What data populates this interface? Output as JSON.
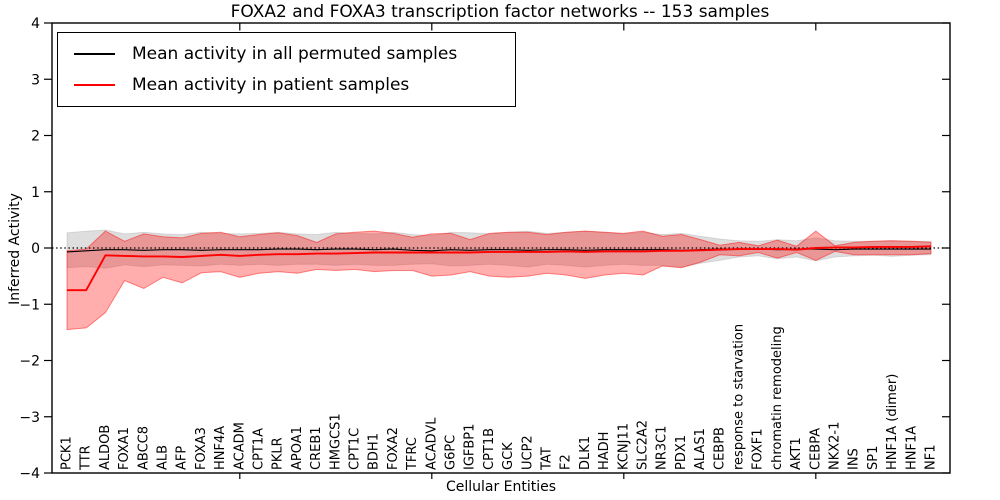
{
  "title": "FOXA2 and FOXA3 transcription factor networks -- 153 samples",
  "legend": {
    "entries": [
      {
        "label": "Mean activity in all permuted samples",
        "color": "#000000"
      },
      {
        "label": "Mean activity in patient samples",
        "color": "#ff0000"
      }
    ]
  },
  "chart_data": {
    "type": "line",
    "title": "FOXA2 and FOXA3 transcription factor networks -- 153 samples",
    "xlabel": "Cellular Entities",
    "ylabel": "Inferred Activity",
    "ylim": [
      -4,
      4
    ],
    "grid": false,
    "legend_position": "upper left",
    "zero_line": {
      "style": "dotted",
      "color": "#000000",
      "y": 0
    },
    "yticks": [
      4,
      3,
      2,
      1,
      0,
      -1,
      -2,
      -3,
      -4
    ],
    "ytick_labels": [
      "4",
      "3",
      "2",
      "1",
      "0",
      "−1",
      "−2",
      "−3",
      "−4"
    ],
    "axis_tick_indices": [
      9,
      19,
      29,
      39
    ],
    "categories": [
      "PCK1",
      "TTR",
      "ALDOB",
      "FOXA1",
      "ABCC8",
      "ALB",
      "AFP",
      "FOXA3",
      "HNF4A",
      "ACADM",
      "CPT1A",
      "PKLR",
      "APOA1",
      "CREB1",
      "HMGCS1",
      "CPT1C",
      "BDH1",
      "FOXA2",
      "TFRC",
      "ACADVL",
      "G6PC",
      "IGFBP1",
      "CPT1B",
      "GCK",
      "UCP2",
      "TAT",
      "F2",
      "DLK1",
      "HADH",
      "KCNJ11",
      "SLC2A2",
      "NR3C1",
      "PDX1",
      "ALAS1",
      "CEBPB",
      "response to starvation",
      "FOXF1",
      "chromatin remodeling",
      "AKT1",
      "CEBPA",
      "NKX2-1",
      "INS",
      "SP1",
      "HNF1A (dimer)",
      "HNF1A",
      "NF1"
    ],
    "series": [
      {
        "name": "Mean activity in all permuted samples",
        "color": "#000000",
        "band_name": "permuted-std-band",
        "band_fill": "rgba(0,0,0,0.13)",
        "band_edge": "rgba(0,0,0,0.10)",
        "values": [
          -0.07,
          -0.05,
          -0.03,
          -0.03,
          -0.04,
          -0.03,
          -0.03,
          -0.04,
          -0.03,
          -0.03,
          -0.03,
          -0.02,
          -0.02,
          -0.03,
          -0.02,
          -0.02,
          -0.03,
          -0.02,
          -0.04,
          -0.05,
          -0.03,
          -0.04,
          -0.03,
          -0.03,
          -0.04,
          -0.03,
          -0.03,
          -0.04,
          -0.03,
          -0.03,
          -0.03,
          -0.03,
          -0.04,
          -0.03,
          -0.02,
          -0.02,
          -0.02,
          -0.03,
          -0.02,
          -0.02,
          -0.03,
          -0.02,
          -0.02,
          -0.02,
          -0.02,
          -0.02
        ],
        "band_upper": [
          0.27,
          0.3,
          0.32,
          0.25,
          0.28,
          0.25,
          0.24,
          0.28,
          0.26,
          0.25,
          0.26,
          0.28,
          0.25,
          0.24,
          0.28,
          0.26,
          0.25,
          0.28,
          0.24,
          0.22,
          0.28,
          0.27,
          0.25,
          0.28,
          0.3,
          0.26,
          0.28,
          0.3,
          0.28,
          0.25,
          0.28,
          0.24,
          0.26,
          0.21,
          0.16,
          0.13,
          0.12,
          0.15,
          0.13,
          0.18,
          0.13,
          0.12,
          0.12,
          0.13,
          0.12,
          0.12
        ],
        "band_lower": [
          -0.35,
          -0.33,
          -0.36,
          -0.3,
          -0.33,
          -0.3,
          -0.31,
          -0.32,
          -0.29,
          -0.31,
          -0.29,
          -0.31,
          -0.29,
          -0.29,
          -0.31,
          -0.29,
          -0.31,
          -0.31,
          -0.29,
          -0.28,
          -0.32,
          -0.31,
          -0.29,
          -0.31,
          -0.34,
          -0.29,
          -0.31,
          -0.34,
          -0.31,
          -0.29,
          -0.31,
          -0.31,
          -0.34,
          -0.27,
          -0.22,
          -0.16,
          -0.14,
          -0.19,
          -0.16,
          -0.23,
          -0.16,
          -0.14,
          -0.13,
          -0.15,
          -0.13,
          -0.12
        ]
      },
      {
        "name": "Mean activity in patient samples",
        "color": "#ff0000",
        "band_name": "patient-std-band",
        "band_fill": "rgba(255,0,0,0.32)",
        "band_edge": "rgba(255,0,0,0.45)",
        "values": [
          -0.75,
          -0.75,
          -0.13,
          -0.14,
          -0.15,
          -0.15,
          -0.16,
          -0.14,
          -0.12,
          -0.14,
          -0.12,
          -0.11,
          -0.11,
          -0.1,
          -0.1,
          -0.09,
          -0.08,
          -0.08,
          -0.08,
          -0.08,
          -0.08,
          -0.08,
          -0.07,
          -0.07,
          -0.07,
          -0.07,
          -0.06,
          -0.07,
          -0.06,
          -0.06,
          -0.06,
          -0.05,
          -0.05,
          -0.04,
          -0.03,
          -0.02,
          -0.02,
          -0.02,
          -0.03,
          0.0,
          0.01,
          0.01,
          0.02,
          0.02,
          0.02,
          0.03
        ],
        "band_upper": [
          -0.05,
          -0.02,
          0.3,
          0.12,
          0.25,
          0.2,
          0.18,
          0.26,
          0.28,
          0.2,
          0.24,
          0.27,
          0.22,
          0.1,
          0.25,
          0.28,
          0.3,
          0.26,
          0.19,
          0.25,
          0.26,
          0.15,
          0.26,
          0.28,
          0.28,
          0.24,
          0.28,
          0.3,
          0.28,
          0.26,
          0.3,
          0.21,
          0.24,
          0.15,
          0.05,
          0.1,
          0.04,
          0.14,
          0.03,
          0.3,
          0.04,
          0.1,
          0.12,
          0.13,
          0.12,
          0.1
        ],
        "band_lower": [
          -1.45,
          -1.42,
          -1.15,
          -0.58,
          -0.72,
          -0.52,
          -0.62,
          -0.44,
          -0.42,
          -0.52,
          -0.45,
          -0.42,
          -0.45,
          -0.38,
          -0.4,
          -0.38,
          -0.42,
          -0.4,
          -0.4,
          -0.5,
          -0.48,
          -0.42,
          -0.5,
          -0.52,
          -0.5,
          -0.45,
          -0.48,
          -0.54,
          -0.48,
          -0.45,
          -0.48,
          -0.32,
          -0.35,
          -0.25,
          -0.12,
          -0.14,
          -0.08,
          -0.18,
          -0.08,
          -0.22,
          -0.06,
          -0.12,
          -0.12,
          -0.12,
          -0.12,
          -0.1
        ]
      }
    ]
  }
}
